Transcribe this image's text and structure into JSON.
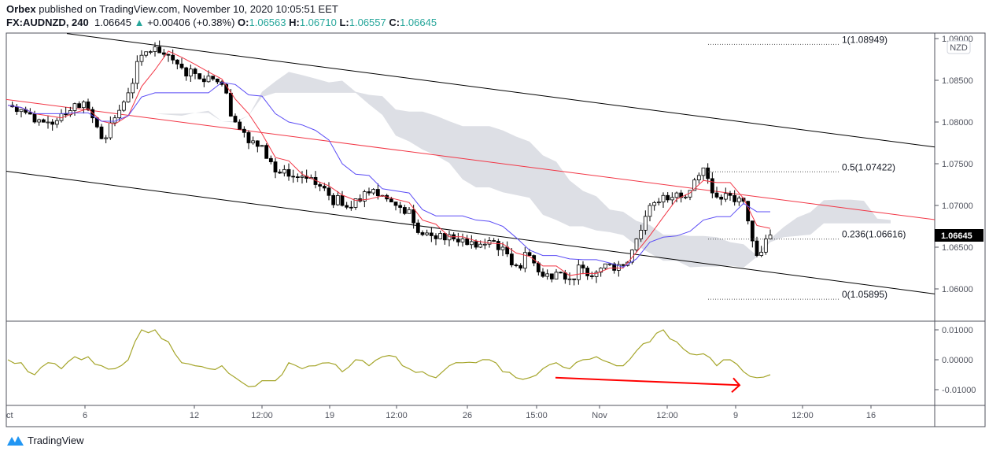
{
  "header": {
    "publisher": "Orbex",
    "published_text": "published on TradingView.com, November 10, 2020 10:05:51 EET",
    "symbol": "FX:AUDNZD, 240",
    "last": "1.06645",
    "change": "+0.00406 (+0.38%)",
    "o_label": "O:",
    "o": "1.06563",
    "h_label": "H:",
    "h": "1.06710",
    "l_label": "L:",
    "l": "1.06557",
    "c_label": "C:",
    "c": "1.06645",
    "up_color": "#26a69a"
  },
  "currency_badge": "NZD",
  "last_price_label": "1.06645",
  "footer": {
    "logo_text": "TradingView"
  },
  "chart_data": {
    "type": "candlestick",
    "price_ticks": [
      "1.09000",
      "1.08500",
      "1.08000",
      "1.07500",
      "1.07000",
      "1.06500",
      "1.06000"
    ],
    "time_ticks": [
      "ct",
      "6",
      "12",
      "12:00",
      "19",
      "12:00",
      "26",
      "15:00",
      "Nov",
      "12:00",
      "9",
      "12:00",
      "16"
    ],
    "closes": [
      1.082,
      1.0815,
      1.08,
      1.08,
      1.081,
      1.0822,
      1.0815,
      1.078,
      1.0805,
      1.0835,
      1.088,
      1.089,
      1.088,
      1.0865,
      1.0858,
      1.0855,
      1.0845,
      1.08,
      1.0775,
      1.0772,
      1.074,
      1.0735,
      1.0735,
      1.0725,
      1.0712,
      1.07,
      1.0708,
      1.0715,
      1.0712,
      1.07,
      1.0695,
      1.0665,
      1.066,
      1.0665,
      1.066,
      1.065,
      1.0658,
      1.065,
      1.0628,
      1.064,
      1.0615,
      1.062,
      1.0612,
      1.0625,
      1.062,
      1.063,
      1.0628,
      1.066,
      1.07,
      1.0712,
      1.0715,
      1.0718,
      1.0745,
      1.071,
      1.0712,
      1.0705,
      1.064,
      1.06645
    ],
    "fib_levels": [
      {
        "label": "1(1.08949)",
        "price": 1.08949
      },
      {
        "label": "0.5(1.07422)",
        "price": 1.07422
      },
      {
        "label": "0.236(1.06616)",
        "price": 1.06616
      },
      {
        "label": "0(1.05895)",
        "price": 1.05895
      }
    ],
    "channel_lines": {
      "upper": {
        "start": 1.0906,
        "end": 1.077,
        "color": "#000000"
      },
      "middle": {
        "start": 1.0827,
        "end": 1.0683,
        "color": "#f23645"
      },
      "lower": {
        "start": 1.0741,
        "end": 1.0594,
        "color": "#000000"
      }
    },
    "indicators": {
      "tenkan_color": "#f23645",
      "kijun_color": "#5b4cf5",
      "cloud_color": "#d1d4dc"
    },
    "oscillator": {
      "ticks": [
        "0.01000",
        "0.00000",
        "-0.01000"
      ],
      "color": "#a5a52a",
      "values": [
        0.0,
        -0.001,
        -0.005,
        -0.001,
        -0.003,
        0.001,
        0.001,
        -0.002,
        -0.003,
        0.0,
        0.01,
        0.01,
        0.006,
        -0.001,
        -0.002,
        -0.003,
        -0.002,
        -0.006,
        -0.009,
        -0.007,
        -0.007,
        -0.001,
        -0.003,
        -0.002,
        -0.001,
        -0.004,
        0.0,
        -0.002,
        0.001,
        0.001,
        -0.003,
        -0.004,
        -0.006,
        -0.002,
        -0.001,
        -0.001,
        0.0,
        -0.004,
        -0.006,
        -0.006,
        -0.003,
        -0.001,
        -0.003,
        0.0,
        0.001,
        -0.001,
        -0.002,
        0.003,
        0.006,
        0.01,
        0.006,
        0.002,
        0.002,
        -0.002,
        0.0,
        -0.004,
        -0.006,
        -0.005
      ],
      "divergence_arrow": {
        "from": -0.006,
        "to": -0.0085,
        "color": "#ff0000"
      }
    }
  }
}
